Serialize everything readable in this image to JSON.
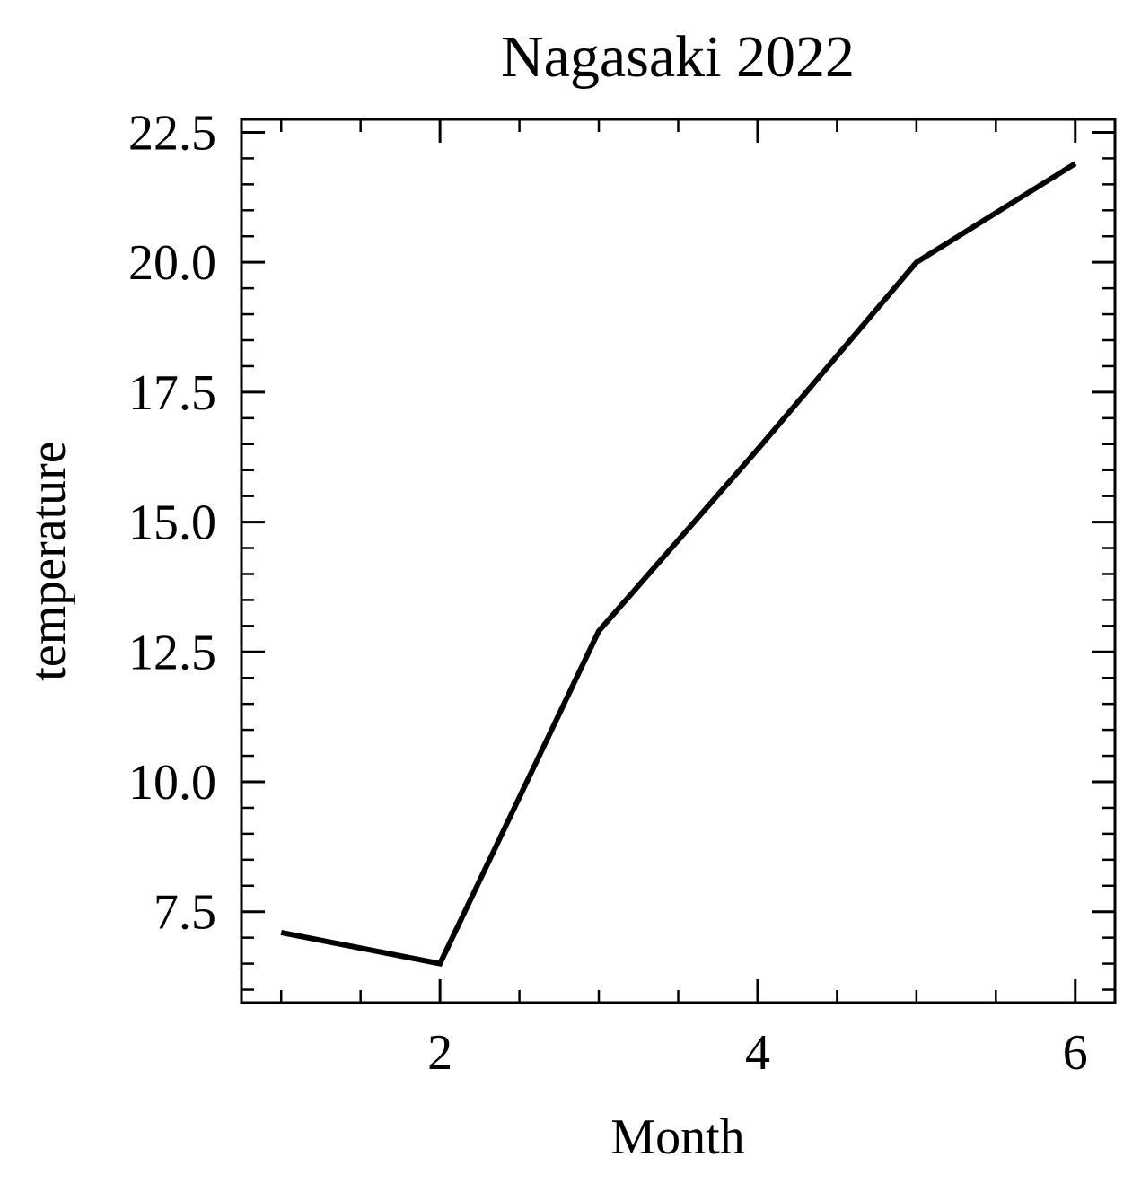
{
  "chart_data": {
    "type": "line",
    "title": "Nagasaki 2022",
    "xlabel": "Month",
    "ylabel": "temperature",
    "x": [
      1,
      2,
      3,
      4,
      5,
      6
    ],
    "series": [
      {
        "values": [
          7.1,
          6.5,
          12.9,
          16.4,
          20.0,
          21.9
        ]
      }
    ],
    "xlim": [
      0.75,
      6.25
    ],
    "ylim": [
      5.75,
      22.75
    ],
    "x_ticks": [
      2,
      4,
      6
    ],
    "x_tick_labels": [
      "2",
      "4",
      "6"
    ],
    "x_minor_step": 0.5,
    "y_ticks": [
      7.5,
      10.0,
      12.5,
      15.0,
      17.5,
      20.0,
      22.5
    ],
    "y_tick_labels": [
      "7.5",
      "10.0",
      "12.5",
      "15.0",
      "17.5",
      "20.0",
      "22.5"
    ],
    "y_minor_step": 0.5,
    "grid": false,
    "line_color": "#000000"
  }
}
